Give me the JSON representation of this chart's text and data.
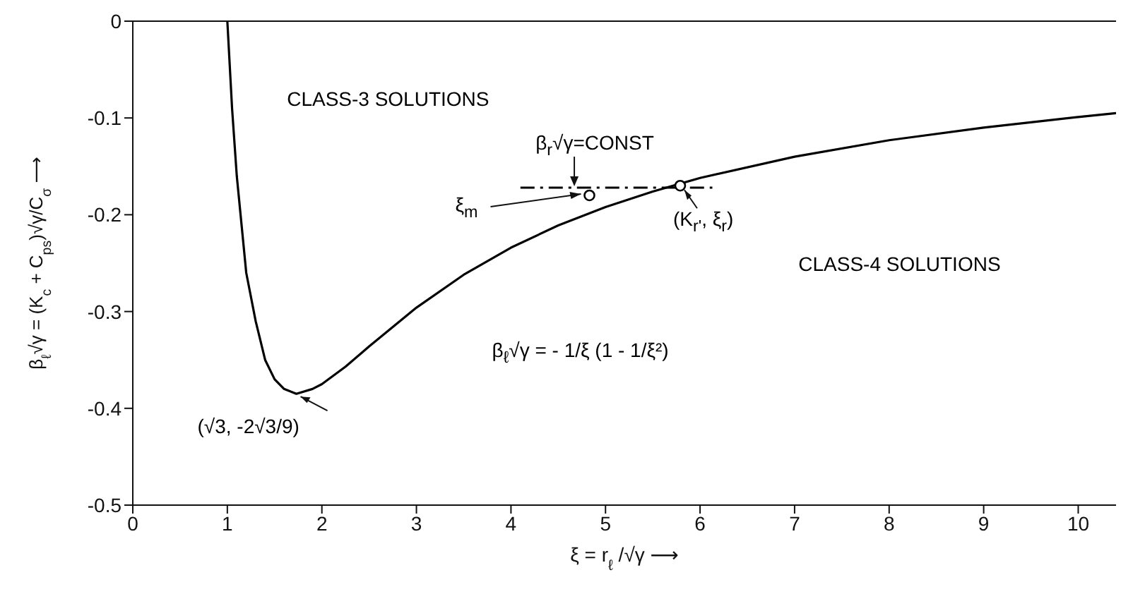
{
  "chart_data": {
    "type": "line",
    "xlabel": "ξ = r$_{ℓ}$ /√γ ⟶",
    "ylabel": "β$_{ℓ}$√γ = (K$_{c}$ + C$_{ps}$)√γ/C$_{σ}$ ⟶",
    "xlim": [
      0,
      10.4
    ],
    "xticks": [
      0,
      1,
      2,
      3,
      4,
      5,
      6,
      7,
      8,
      9,
      10
    ],
    "ylim": [
      -0.5,
      0
    ],
    "yticks": [
      0,
      -0.1,
      -0.2,
      -0.3,
      -0.4,
      -0.5
    ],
    "series": [
      {
        "color": "#000000",
        "marker": "none",
        "line_style": "solid",
        "x": [
          1,
          1.05,
          1.1,
          1.2,
          1.3,
          1.4,
          1.5,
          1.6,
          1.73,
          1.9,
          2,
          2.25,
          2.5,
          3,
          3.5,
          4,
          4.5,
          5,
          5.5,
          6,
          7,
          8,
          9,
          10,
          10.4
        ],
        "values": [
          0,
          -0.09,
          -0.16,
          -0.26,
          -0.31,
          -0.35,
          -0.37,
          -0.38,
          -0.385,
          -0.38,
          -0.375,
          -0.357,
          -0.336,
          -0.296,
          -0.262,
          -0.234,
          -0.211,
          -0.192,
          -0.176,
          -0.162,
          -0.14,
          -0.123,
          -0.11,
          -0.099,
          -0.095
        ]
      },
      {
        "type": "line",
        "color": "#000000",
        "marker": "none",
        "line_style": "dashed",
        "x": [
          4.1,
          6.13
        ],
        "values": [
          -0.172,
          -0.172
        ]
      },
      {
        "type": "scatter",
        "color": "#000000",
        "marker": "circle",
        "x": [
          4.83,
          5.79
        ],
        "values": [
          -0.18,
          -0.17
        ]
      }
    ],
    "annotations": [
      "CLASS-3 SOLUTIONS",
      "CLASS-4 SOLUTIONS",
      "β$_{r}$√γ=CONST",
      "β$_{ℓ}$√γ  =  - 1/ξ (1 - 1/ξ²)",
      {
        "text": "(√3, -2√3/9)",
        "x": 1.73,
        "y": -0.385
      },
      {
        "text": "ξ$_{m}$",
        "x": 4.83,
        "y": -0.18
      },
      {
        "text": "(K$_{r'}$, ξ$_{r}$)",
        "x": 5.79,
        "y": -0.17
      }
    ]
  }
}
